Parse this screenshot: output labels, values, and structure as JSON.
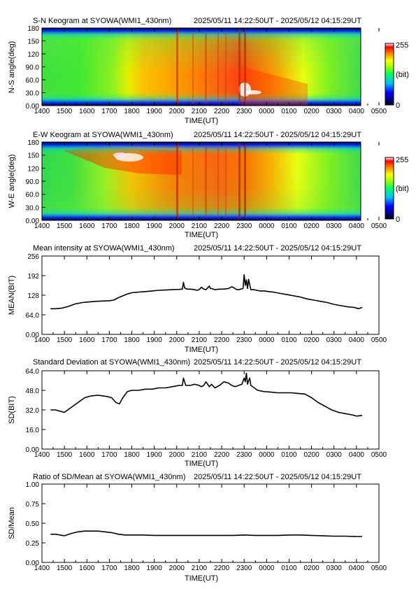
{
  "chart_data": [
    {
      "type": "heatmap",
      "title": "S-N Keogram at SYOWA(WMI1_430nm)",
      "time_range_label": "2025/05/11 14:22:50UT - 2025/05/12 04:15:29UT",
      "xlabel": "TIME(UT)",
      "ylabel": "N-S angle(deg)",
      "x_ticks": [
        "1400",
        "1500",
        "1600",
        "1700",
        "1800",
        "1900",
        "2000",
        "2100",
        "2200",
        "2300",
        "0000",
        "0100",
        "0200",
        "0300",
        "0400",
        "0500"
      ],
      "y_ticks": [
        "0.00",
        "30.0",
        "60.0",
        "90.0",
        "120",
        "150",
        "180"
      ],
      "ylim": [
        0,
        180
      ],
      "colorbar": {
        "max_label": "255",
        "unit_label": "(bit)",
        "min_label": "0"
      },
      "image_key": "sn"
    },
    {
      "type": "heatmap",
      "title": "E-W Keogram at SYOWA(WMI1_430nm)",
      "time_range_label": "2025/05/11 14:22:50UT - 2025/05/12 04:15:29UT",
      "xlabel": "TIME(UT)",
      "ylabel": "W-E angle(deg)",
      "x_ticks": [
        "1400",
        "1500",
        "1600",
        "1700",
        "1800",
        "1900",
        "2000",
        "2100",
        "2200",
        "2300",
        "0000",
        "0100",
        "0200",
        "0300",
        "0400",
        "0500"
      ],
      "y_ticks": [
        "0.00",
        "30.0",
        "60.0",
        "90.0",
        "120",
        "150",
        "180"
      ],
      "ylim": [
        0,
        180
      ],
      "colorbar": {
        "max_label": "255",
        "unit_label": "(bit)",
        "min_label": "0"
      },
      "image_key": "ew"
    },
    {
      "type": "line",
      "title": "Mean intensity at SYOWA(WMI1_430nm)",
      "time_range_label": "2025/05/11 14:22:50UT - 2025/05/12 04:15:29UT",
      "xlabel": "TIME(UT)",
      "ylabel": "MEAN(BIT)",
      "x_ticks": [
        "1400",
        "1500",
        "1600",
        "1700",
        "1800",
        "1900",
        "2000",
        "2100",
        "2200",
        "2300",
        "0000",
        "0100",
        "0200",
        "0300",
        "0400",
        "0500"
      ],
      "y_ticks": [
        "0.00",
        "64.0",
        "128",
        "192",
        "256"
      ],
      "ylim": [
        0,
        256
      ],
      "series": [
        {
          "x": [
            14.38,
            14.6,
            14.9,
            15.2,
            15.5,
            15.8,
            16.1,
            16.4,
            16.7,
            17.0,
            17.2,
            17.4,
            17.6,
            17.8,
            18.0,
            18.3,
            18.6,
            18.9,
            19.2,
            19.5,
            19.8,
            20.1,
            20.25,
            20.3,
            20.35,
            20.45,
            20.6,
            20.8,
            20.9,
            21.0,
            21.1,
            21.2,
            21.3,
            21.45,
            21.5,
            21.55,
            21.7,
            21.9,
            22.1,
            22.3,
            22.45,
            22.55,
            22.65,
            22.75,
            22.85,
            22.95,
            23.0,
            23.05,
            23.1,
            23.15,
            23.2,
            23.25,
            23.3,
            23.4,
            23.5,
            23.7,
            23.9,
            24.1,
            24.3,
            24.6,
            24.9,
            25.2,
            25.5,
            25.8,
            26.1,
            26.4,
            26.7,
            27.0,
            27.3,
            27.6,
            27.9,
            28.1,
            28.25
          ],
          "y": [
            84,
            84,
            86,
            92,
            100,
            104,
            106,
            108,
            109,
            110,
            112,
            120,
            126,
            132,
            136,
            138,
            140,
            142,
            144,
            145,
            146,
            147,
            148,
            170,
            152,
            148,
            148,
            146,
            144,
            146,
            154,
            148,
            146,
            158,
            150,
            150,
            146,
            148,
            148,
            150,
            156,
            152,
            147,
            146,
            148,
            150,
            195,
            160,
            178,
            150,
            180,
            162,
            146,
            146,
            145,
            142,
            142,
            140,
            138,
            134,
            130,
            126,
            122,
            116,
            112,
            108,
            104,
            98,
            94,
            90,
            88,
            84,
            88
          ]
        }
      ],
      "y_raw": [
        84,
        84,
        86,
        92,
        100,
        104,
        106,
        108,
        109,
        110,
        112,
        120,
        126,
        132,
        136,
        138,
        140,
        142,
        144,
        145,
        146,
        147,
        148,
        170,
        152,
        148,
        148,
        146,
        144,
        146,
        154,
        148,
        146,
        158,
        150,
        150,
        146,
        148,
        148,
        150,
        156,
        152,
        147,
        146,
        148,
        150,
        195,
        160,
        178,
        150,
        180,
        162,
        146,
        146,
        145,
        142,
        142,
        140,
        138,
        134,
        130,
        126,
        122,
        116,
        112,
        108,
        104,
        98,
        94,
        90,
        88,
        84,
        88
      ]
    },
    {
      "type": "line",
      "title": "Standard Deviation at SYOWA(WMI1_430nm)",
      "time_range_label": "2025/05/11 14:22:50UT - 2025/05/12 04:15:29UT",
      "xlabel": "TIME(UT)",
      "ylabel": "SD(BIT)",
      "x_ticks": [
        "1400",
        "1500",
        "1600",
        "1700",
        "1800",
        "1900",
        "2000",
        "2100",
        "2200",
        "2300",
        "0000",
        "0100",
        "0200",
        "0300",
        "0400",
        "0500"
      ],
      "y_ticks": [
        "0.00",
        "16.0",
        "32.0",
        "48.0",
        "64.0"
      ],
      "ylim": [
        0,
        64
      ],
      "series": [
        {
          "x": [
            14.38,
            14.6,
            14.8,
            15.0,
            15.3,
            15.6,
            15.9,
            16.2,
            16.5,
            16.7,
            16.9,
            17.1,
            17.3,
            17.45,
            17.6,
            17.8,
            18.0,
            18.3,
            18.6,
            18.9,
            19.2,
            19.5,
            19.8,
            20.1,
            20.25,
            20.3,
            20.4,
            20.6,
            20.8,
            21.0,
            21.1,
            21.2,
            21.3,
            21.45,
            21.55,
            21.7,
            21.9,
            22.1,
            22.3,
            22.45,
            22.6,
            22.75,
            22.9,
            23.0,
            23.05,
            23.1,
            23.15,
            23.2,
            23.25,
            23.3,
            23.45,
            23.6,
            23.9,
            24.2,
            24.5,
            24.8,
            25.1,
            25.4,
            25.7,
            26.0,
            26.3,
            26.6,
            26.9,
            27.2,
            27.5,
            27.8,
            28.0,
            28.25
          ],
          "y": [
            32,
            32,
            31,
            30,
            34,
            38,
            42,
            43.5,
            44,
            43.5,
            43,
            42,
            38,
            37,
            42,
            47,
            48,
            48,
            49,
            49,
            50,
            50,
            51,
            52,
            52,
            58,
            52,
            52,
            53,
            52,
            51,
            52,
            55,
            51,
            53,
            50,
            52,
            55,
            54,
            52,
            51,
            52,
            53,
            58,
            55,
            62,
            53,
            56,
            58,
            52,
            50,
            48,
            47,
            46.5,
            46,
            46,
            46,
            45.5,
            45,
            42,
            38,
            35,
            32,
            30,
            29,
            28,
            27,
            27.5
          ]
        }
      ]
    },
    {
      "type": "line",
      "title": "Ratio of SD/Mean at SYOWA(WMI1_430nm)",
      "time_range_label": "2025/05/11 14:22:50UT - 2025/05/12 04:15:29UT",
      "xlabel": "TIME(UT)",
      "ylabel": "SD/Mean",
      "x_ticks": [
        "1400",
        "1500",
        "1600",
        "1700",
        "1800",
        "1900",
        "2000",
        "2100",
        "2200",
        "2300",
        "0000",
        "0100",
        "0200",
        "0300",
        "0400",
        "0500"
      ],
      "y_ticks": [
        "0.00",
        "0.25",
        "0.50",
        "0.75",
        "1.00"
      ],
      "ylim": [
        0,
        1.0
      ],
      "series": [
        {
          "x": [
            14.38,
            14.6,
            14.8,
            15.0,
            15.3,
            15.6,
            15.9,
            16.2,
            16.5,
            16.8,
            17.1,
            17.4,
            17.7,
            18.0,
            18.5,
            19.0,
            19.5,
            20.0,
            20.5,
            21.0,
            21.5,
            22.0,
            22.5,
            23.0,
            23.5,
            24.0,
            24.5,
            25.0,
            25.5,
            26.0,
            26.5,
            27.0,
            27.5,
            28.0,
            28.25
          ],
          "y": [
            0.36,
            0.36,
            0.35,
            0.34,
            0.37,
            0.39,
            0.4,
            0.4,
            0.4,
            0.39,
            0.38,
            0.36,
            0.35,
            0.35,
            0.35,
            0.345,
            0.345,
            0.345,
            0.345,
            0.345,
            0.345,
            0.345,
            0.345,
            0.35,
            0.345,
            0.345,
            0.345,
            0.35,
            0.35,
            0.345,
            0.34,
            0.335,
            0.335,
            0.33,
            0.33
          ]
        }
      ]
    }
  ],
  "colors": {
    "background": "#ffffff",
    "line": "#000000",
    "colormap": [
      "#000033",
      "#000080",
      "#0000ff",
      "#00aaff",
      "#00ff80",
      "#80ff00",
      "#ffff00",
      "#ff9900",
      "#ff0000",
      "#ffffff"
    ]
  }
}
